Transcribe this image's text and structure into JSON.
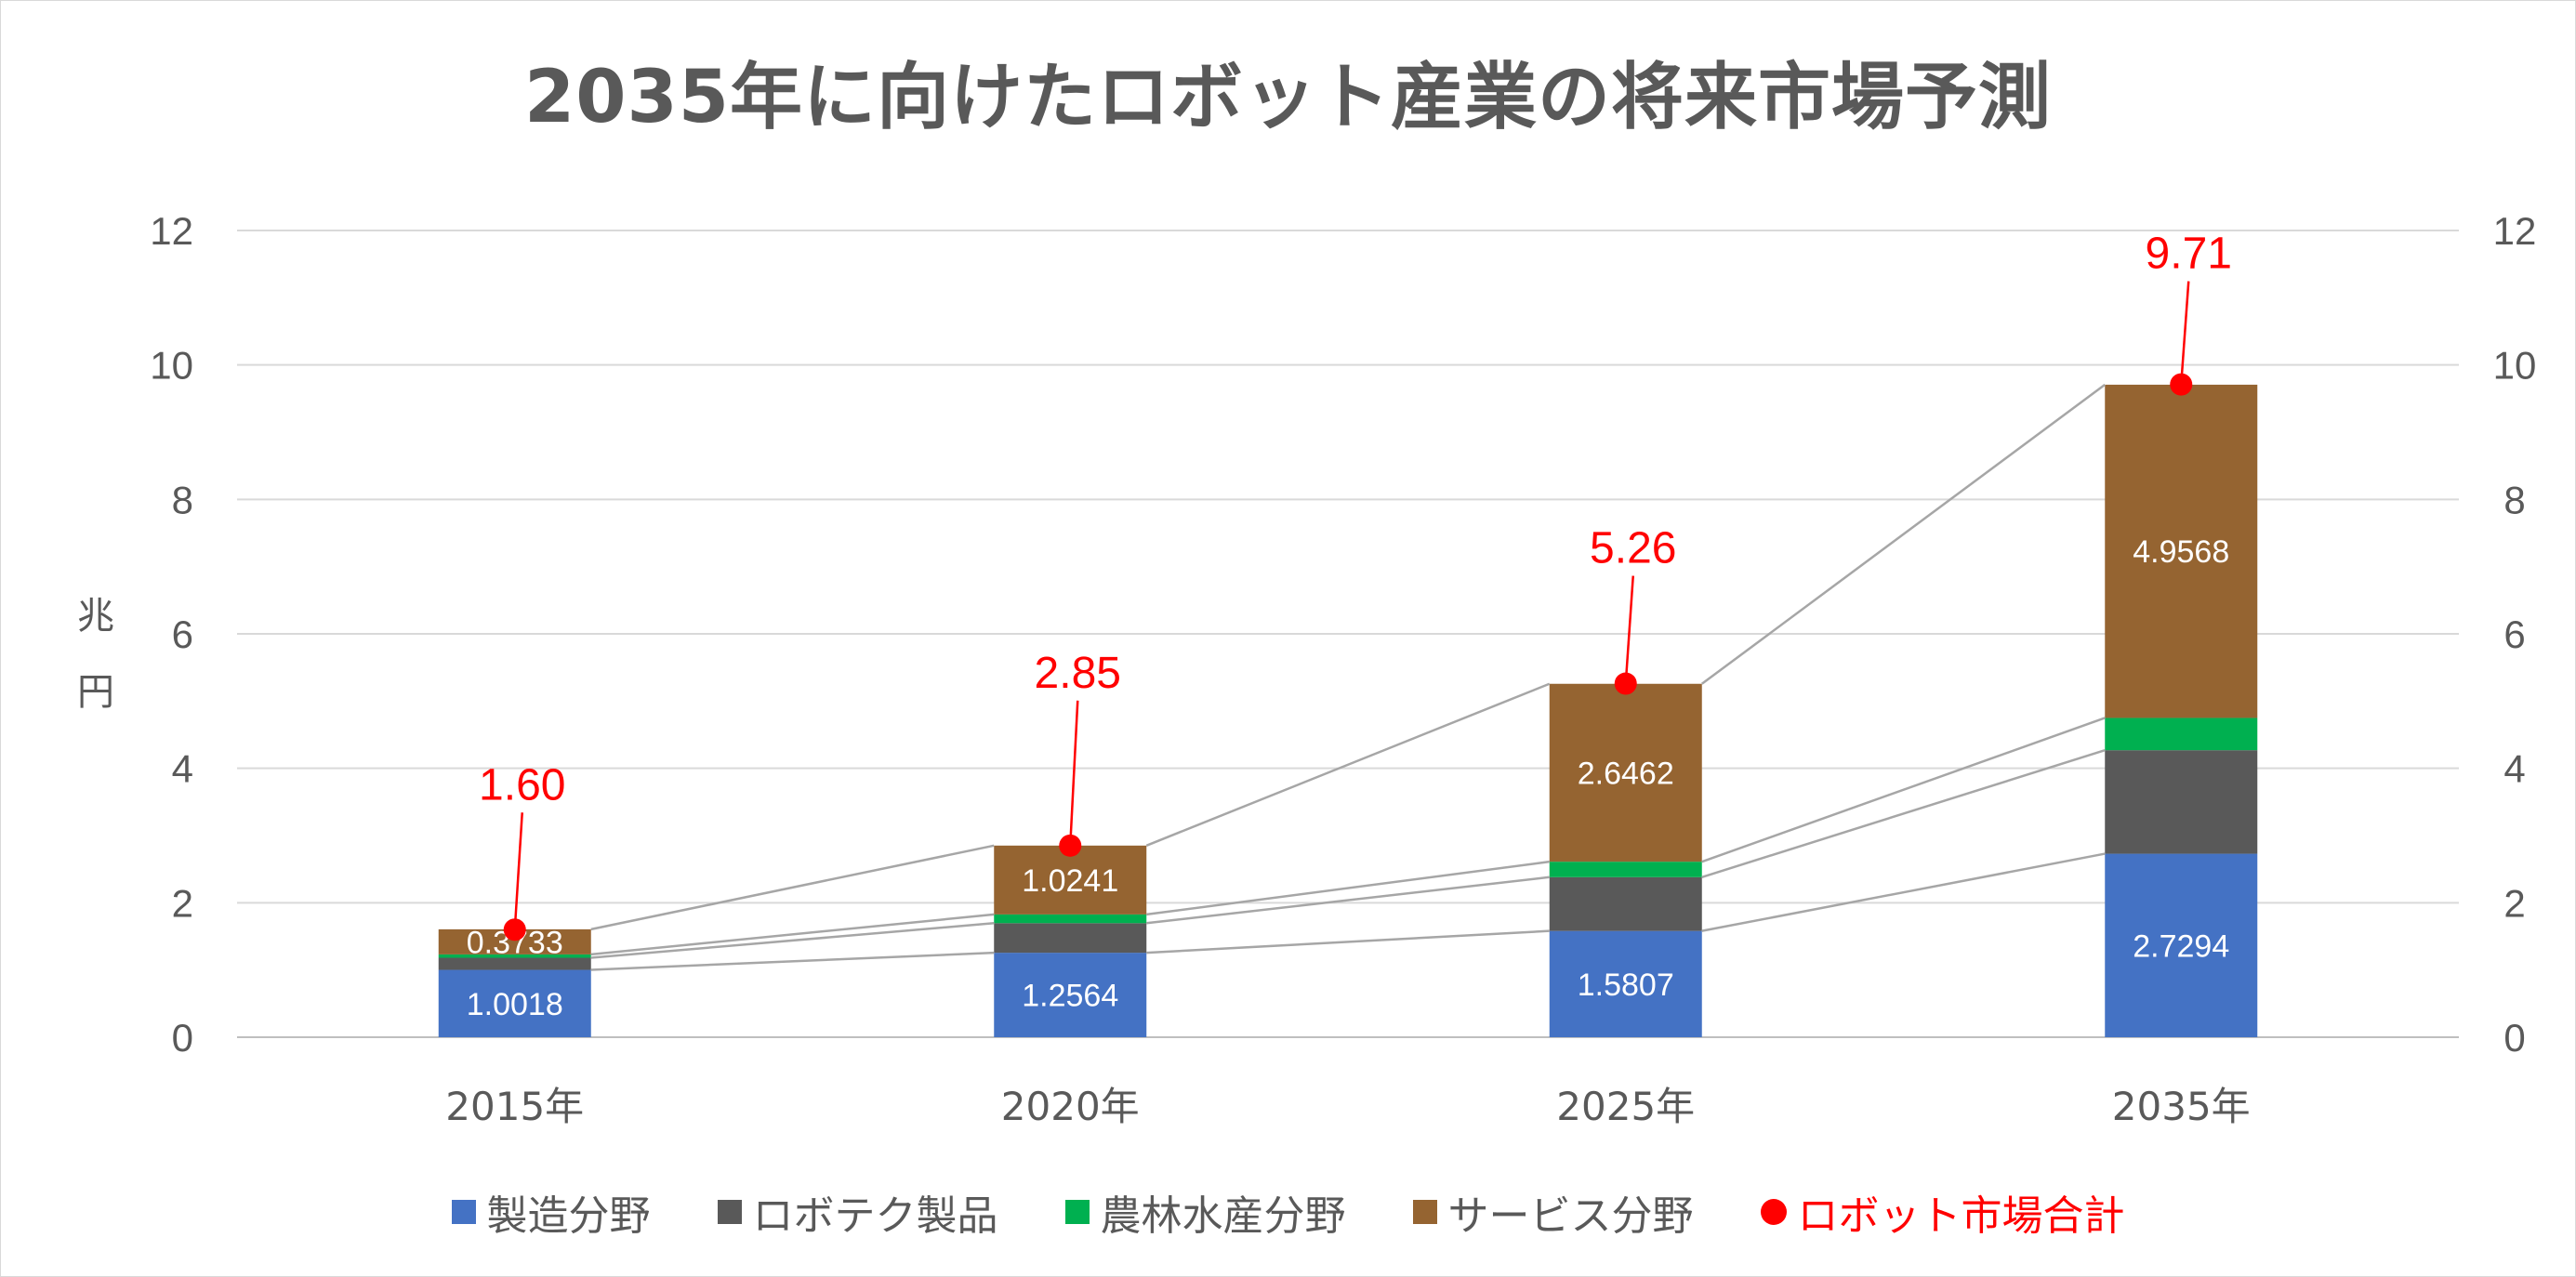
{
  "title": "2035年に向けたロボット産業の将来市場予測",
  "chart_data": {
    "type": "bar",
    "stacked": true,
    "title": "2035年に向けたロボット産業の将来市場予測",
    "ylabel": "兆円",
    "xlabel": "",
    "ylim": [
      0,
      12
    ],
    "yticks": [
      0,
      2,
      4,
      6,
      8,
      10,
      12
    ],
    "secondary_ylim": [
      0,
      12
    ],
    "grid": true,
    "legend_position": "bottom",
    "categories": [
      "2015年",
      "2020年",
      "2025年",
      "2035年"
    ],
    "series": [
      {
        "name": "製造分野",
        "color": "#4472c4",
        "values": [
          1.0018,
          1.2564,
          1.5807,
          2.7294
        ],
        "labels": [
          "1.0018",
          "1.2564",
          "1.5807",
          "2.7294"
        ]
      },
      {
        "name": "ロボテク製品",
        "color": "#595959",
        "values": [
          0.18,
          0.44,
          0.8,
          1.54
        ]
      },
      {
        "name": "農林水産分野",
        "color": "#00b050",
        "values": [
          0.05,
          0.13,
          0.23,
          0.48
        ]
      },
      {
        "name": "サービス分野",
        "color": "#956431",
        "values": [
          0.3733,
          1.0241,
          2.6462,
          4.9568
        ],
        "labels": [
          "0.3733",
          "1.0241",
          "2.6462",
          "4.9568"
        ]
      }
    ],
    "total": {
      "name": "ロボット市場合計",
      "color": "#ff0000",
      "values": [
        1.6,
        2.85,
        5.26,
        9.71
      ],
      "labels": [
        "1.60",
        "2.85",
        "5.26",
        "9.71"
      ]
    }
  }
}
